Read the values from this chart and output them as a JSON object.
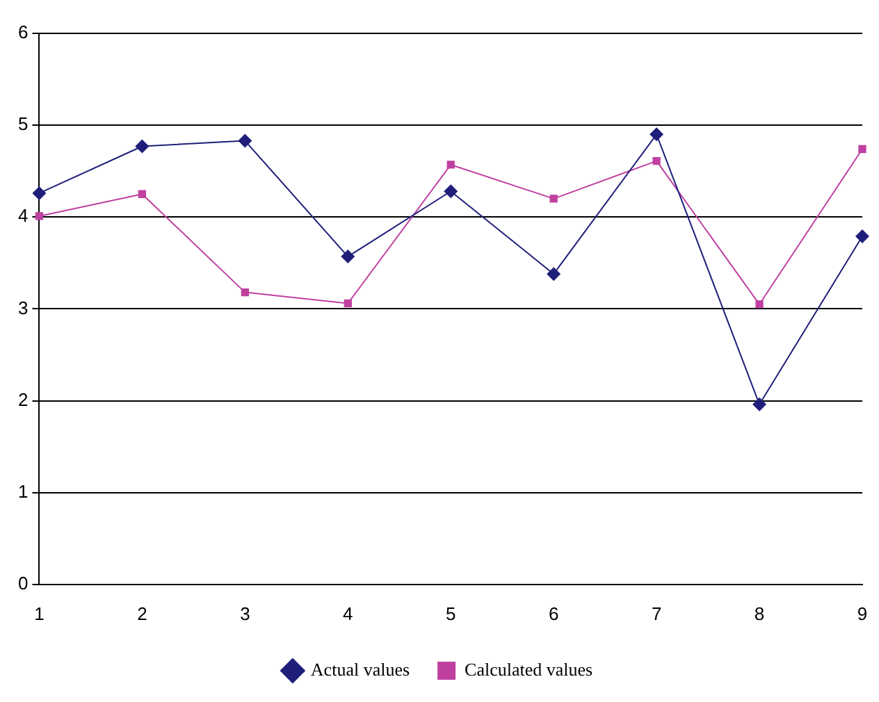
{
  "chart_data": {
    "type": "line",
    "categories": [
      "1",
      "2",
      "3",
      "4",
      "5",
      "6",
      "7",
      "8",
      "9"
    ],
    "series": [
      {
        "name": "Actual values",
        "color": "#1f1f7a",
        "marker": "diamond",
        "values": [
          4.26,
          4.77,
          4.83,
          3.57,
          4.28,
          3.38,
          4.9,
          1.96,
          3.79
        ]
      },
      {
        "name": "Calculated values",
        "color": "#c040a0",
        "marker": "square",
        "values": [
          4.01,
          4.25,
          3.18,
          3.06,
          4.57,
          4.2,
          4.61,
          3.05,
          4.74
        ]
      }
    ],
    "ylim": [
      0,
      6
    ],
    "yticks": [
      0,
      1,
      2,
      3,
      4,
      5,
      6
    ],
    "grid": "y",
    "legend": "bottom"
  }
}
